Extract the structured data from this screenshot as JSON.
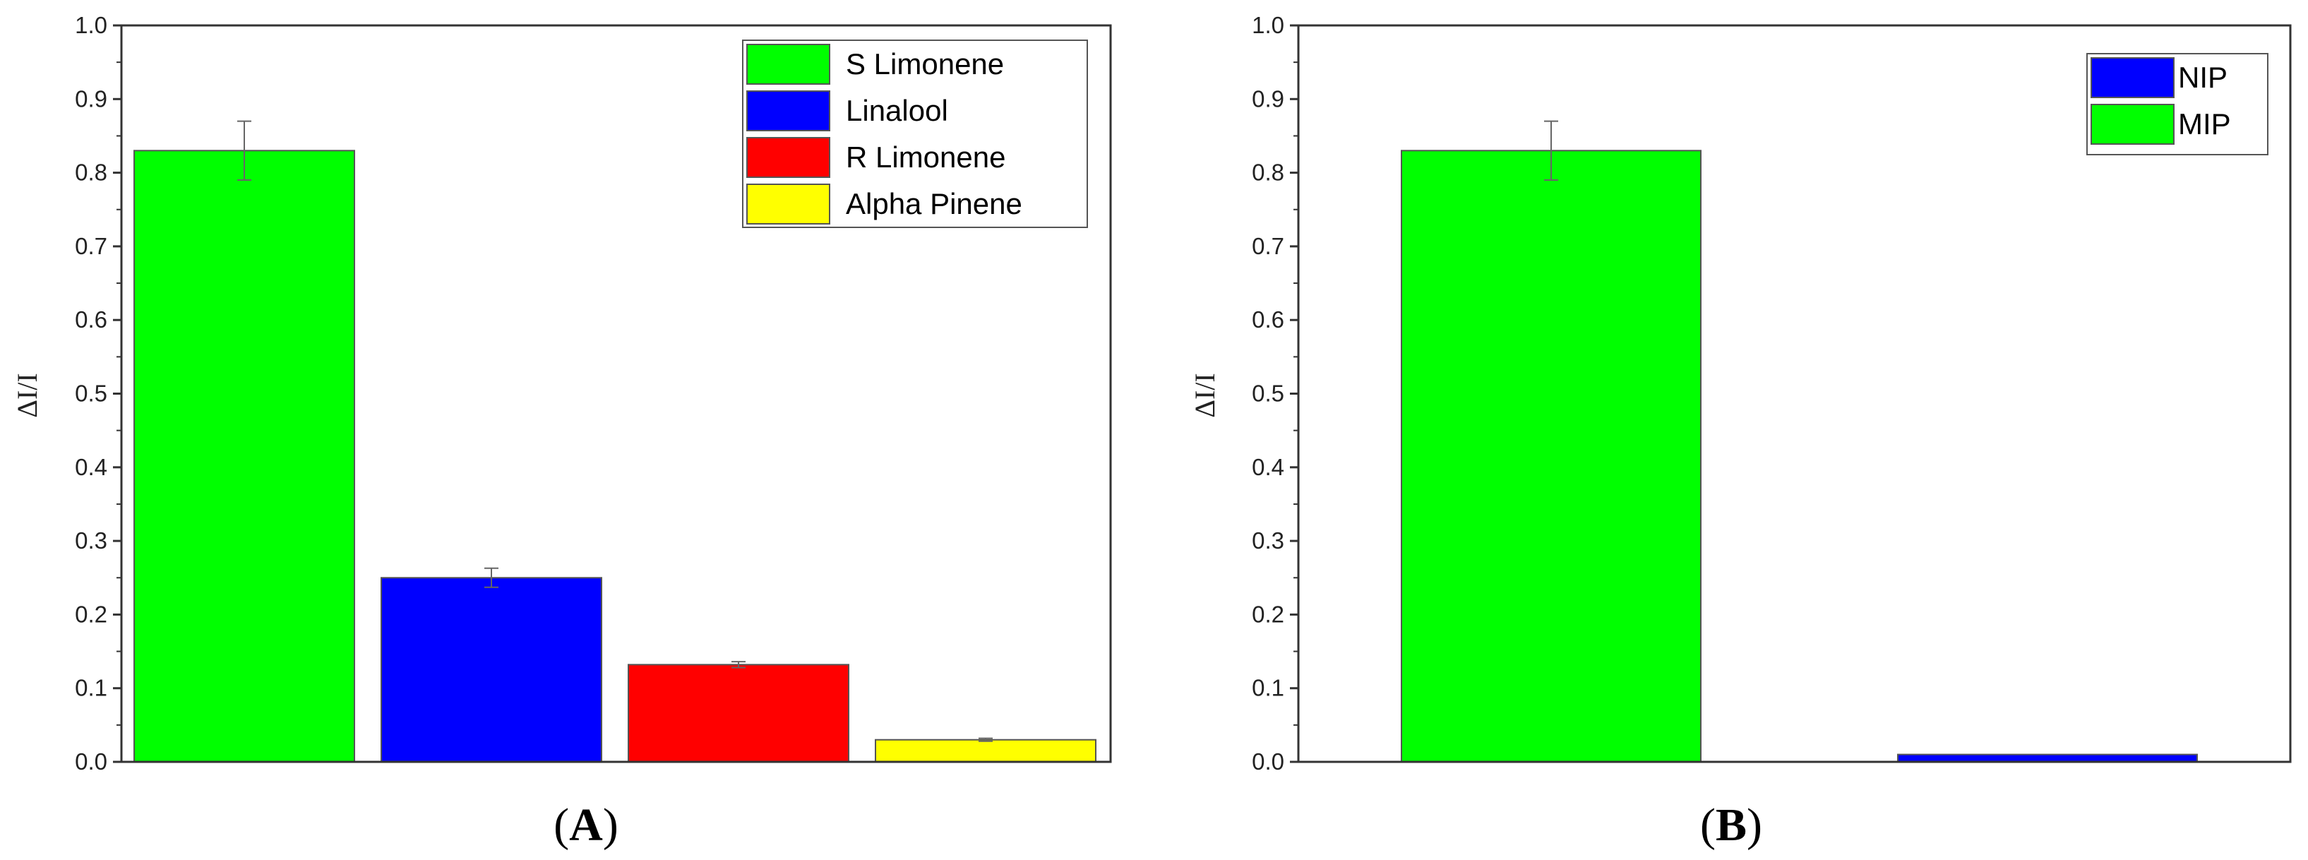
{
  "chart_data": [
    {
      "type": "bar",
      "panel_label": "A",
      "ylabel": "ΔI/I",
      "ylim": [
        0,
        1.0
      ],
      "yticks": [
        "0.0",
        "0.1",
        "0.2",
        "0.3",
        "0.4",
        "0.5",
        "0.6",
        "0.7",
        "0.8",
        "0.9",
        "1.0"
      ],
      "legend_position": "top-right",
      "bars": [
        {
          "name": "S Limonene",
          "value": 0.83,
          "error": 0.04,
          "color": "#00ff00"
        },
        {
          "name": "Linalool",
          "value": 0.25,
          "error": 0.013,
          "color": "#0000ff"
        },
        {
          "name": "R Limonene",
          "value": 0.132,
          "error": 0.004,
          "color": "#ff0000"
        },
        {
          "name": "Alpha Pinene",
          "value": 0.03,
          "error": 0.002,
          "color": "#ffff00"
        }
      ]
    },
    {
      "type": "bar",
      "panel_label": "B",
      "ylabel": "ΔI/I",
      "ylim": [
        0,
        1.0
      ],
      "yticks": [
        "0.0",
        "0.1",
        "0.2",
        "0.3",
        "0.4",
        "0.5",
        "0.6",
        "0.7",
        "0.8",
        "0.9",
        "1.0"
      ],
      "legend_position": "top-right",
      "bars": [
        {
          "name": "MIP",
          "value": 0.83,
          "error": 0.04,
          "color": "#00ff00"
        },
        {
          "name": "NIP",
          "value": 0.01,
          "error": 0,
          "color": "#0000ff"
        }
      ],
      "legend_order": [
        "NIP",
        "MIP"
      ]
    }
  ]
}
